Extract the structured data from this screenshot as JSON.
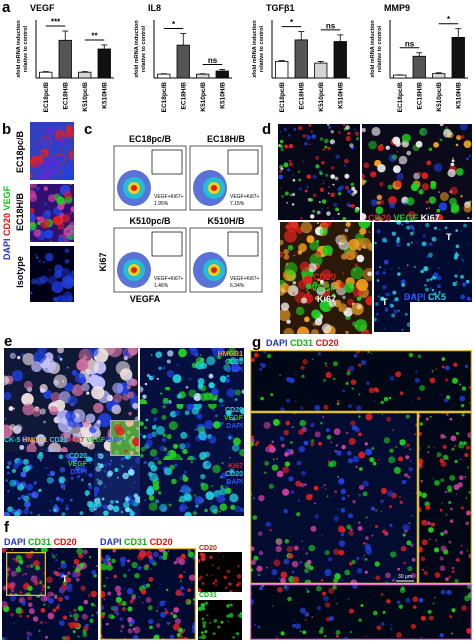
{
  "chart_data": [
    {
      "type": "bar",
      "title": "VEGF",
      "ylabel": [
        "xfold mRNA induction",
        "relative to control"
      ],
      "categories": [
        "EC18pc/B",
        "EC18H/B",
        "K510pc/B",
        "K510H/B"
      ],
      "values": [
        1,
        6.5,
        1,
        5
      ],
      "errors": [
        0.1,
        1.6,
        0.1,
        0.7
      ],
      "colors": [
        "#ffffff",
        "#555555",
        "#d4d4d4",
        "#111111"
      ],
      "ylim": [
        0,
        10
      ],
      "significance": [
        "***",
        "**"
      ]
    },
    {
      "type": "bar",
      "title": "IL8",
      "ylabel": [
        "xfold mRNA induction",
        "relative to control"
      ],
      "categories": [
        "EC18pc/B",
        "EC18H/B",
        "K510pc/B",
        "K510H/B"
      ],
      "values": [
        1,
        8.5,
        1,
        1.8
      ],
      "errors": [
        0.1,
        3,
        0.1,
        0.4
      ],
      "colors": [
        "#ffffff",
        "#555555",
        "#d4d4d4",
        "#111111"
      ],
      "ylim": [
        0,
        15
      ],
      "significance": [
        "*",
        "ns"
      ]
    },
    {
      "type": "bar",
      "title": "TGFβ1",
      "ylabel": [
        "xfold mRNA induction",
        "relative to control"
      ],
      "categories": [
        "EC18pc/B",
        "EC18H/B",
        "K510pc/B",
        "K510H/B"
      ],
      "values": [
        1,
        2.3,
        0.9,
        2.2
      ],
      "errors": [
        0.05,
        0.5,
        0.1,
        0.4
      ],
      "colors": [
        "#ffffff",
        "#555555",
        "#d4d4d4",
        "#111111"
      ],
      "ylim": [
        0,
        3.5
      ],
      "significance": [
        "*",
        "ns"
      ]
    },
    {
      "type": "bar",
      "title": "MMP9",
      "ylabel": [
        "xfold mRNA induction",
        "relative to control"
      ],
      "categories": [
        "EC18pc/B",
        "EC18H/B",
        "K510pc/B",
        "K510H/B"
      ],
      "values": [
        1,
        7.5,
        1.5,
        14
      ],
      "errors": [
        0.1,
        1.2,
        0.3,
        3
      ],
      "colors": [
        "#ffffff",
        "#555555",
        "#d4d4d4",
        "#111111"
      ],
      "ylim": [
        0,
        20
      ],
      "significance": [
        "ns",
        "*"
      ]
    }
  ],
  "panel_labels": [
    "a",
    "b",
    "c",
    "d",
    "e",
    "f",
    "g"
  ],
  "panel_b": {
    "rows": [
      "EC18pc/B",
      "EC18H/B",
      "Isotype"
    ],
    "stain": [
      "DAPI",
      "CD20",
      "VEGF"
    ]
  },
  "panel_c": {
    "plots": [
      {
        "name": "EC18pc/B",
        "gate": "VEGF+Ki67+",
        "percent": "1.95%"
      },
      {
        "name": "EC18H/B",
        "gate": "VEGF+Ki67+",
        "percent": "7.15%"
      },
      {
        "name": "K510pc/B",
        "gate": "VEGF+Ki67+",
        "percent": "1.46%"
      },
      {
        "name": "K510H/B",
        "gate": "VEGF+Ki67+",
        "percent": "6.34%"
      }
    ],
    "y_axis": "Ki67",
    "x_axis": "VEGFA"
  },
  "panel_d": {
    "top": [
      "CD20",
      "VEGF",
      "Ki67"
    ],
    "left": [
      "CD20",
      "VEGF",
      "Ki67"
    ],
    "right": [
      "DAPI",
      "CK5"
    ],
    "tumor": "T"
  },
  "panel_e": {
    "legend": [
      "CK-5",
      "HMGB1",
      "CD20",
      "Ki67",
      "VEGF",
      "DAPI"
    ],
    "inset_top": [
      "HMGB1",
      "CD20",
      "DAPI"
    ],
    "inset_mid": [
      "CD20",
      "VEGF",
      "DAPI"
    ],
    "inset_left": [
      "CD20",
      "VEGF",
      "DAPI"
    ],
    "inset_bottom": [
      "Ki67",
      "CD20",
      "DAPI"
    ]
  },
  "panel_f": {
    "stain": [
      "DAPI",
      "CD31",
      "CD20"
    ],
    "tumor": "T",
    "side": [
      "CD20",
      "CD31"
    ]
  },
  "panel_g": {
    "stain": [
      "DAPI",
      "CD31",
      "CD20"
    ],
    "scale": "30 µm"
  }
}
